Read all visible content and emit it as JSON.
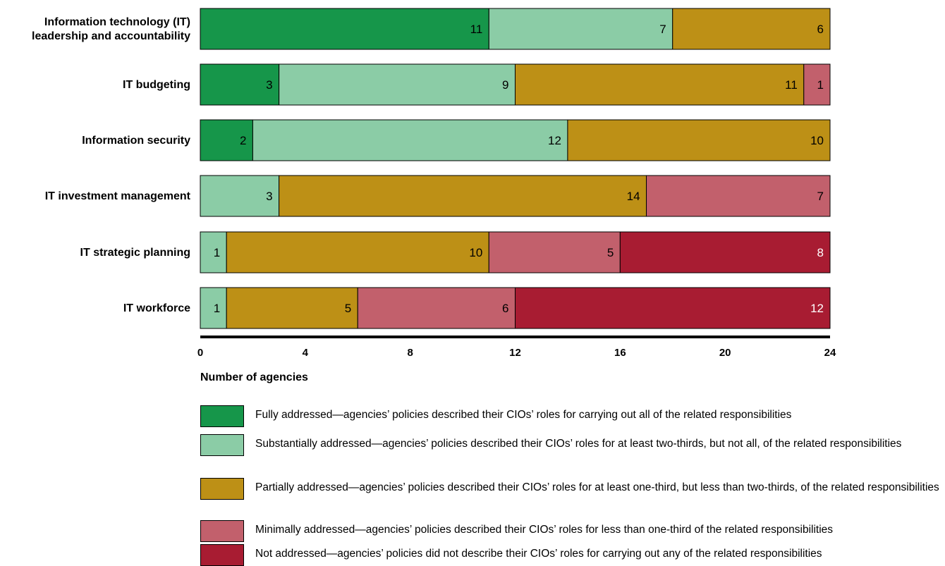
{
  "chart_data": {
    "type": "bar",
    "orientation": "horizontal",
    "stacked": true,
    "categories": [
      [
        "Information technology (IT)",
        "leadership and accountability"
      ],
      [
        "IT budgeting"
      ],
      [
        "Information security"
      ],
      [
        "IT investment management"
      ],
      [
        "IT strategic planning"
      ],
      [
        "IT workforce"
      ]
    ],
    "series": [
      {
        "name": "Fully addressed",
        "color": "#16964a",
        "text_color": "#000000",
        "values": [
          11,
          3,
          2,
          0,
          0,
          0
        ]
      },
      {
        "name": "Substantially addressed",
        "color": "#8bcca6",
        "text_color": "#000000",
        "values": [
          7,
          9,
          12,
          3,
          1,
          1
        ]
      },
      {
        "name": "Partially addressed",
        "color": "#bd9016",
        "text_color": "#000000",
        "values": [
          6,
          11,
          10,
          14,
          10,
          5
        ]
      },
      {
        "name": "Minimally addressed",
        "color": "#c2606c",
        "text_color": "#000000",
        "values": [
          0,
          1,
          0,
          7,
          5,
          6
        ]
      },
      {
        "name": "Not addressed",
        "color": "#a81c32",
        "text_color": "#ffffff",
        "values": [
          0,
          0,
          0,
          0,
          8,
          12
        ]
      }
    ],
    "xlim": [
      0,
      24
    ],
    "xticks": [
      "0",
      "4",
      "8",
      "12",
      "16",
      "20",
      "24"
    ],
    "xlabel": "Number of agencies",
    "grid": false,
    "legend_position": "bottom"
  },
  "legend": [
    {
      "color": "#16964a",
      "text": "Fully addressed—agencies’ policies described their CIOs’ roles for carrying out all of the related responsibilities"
    },
    {
      "color": "#8bcca6",
      "text": "Substantially addressed—agencies’ policies described their CIOs’ roles for at least two-thirds, but not all, of the related responsibilities"
    },
    {
      "color": "#bd9016",
      "text": "Partially addressed—agencies’ policies described their CIOs’ roles for at least one-third, but less than two-thirds, of the related responsibilities"
    },
    {
      "color": "#c2606c",
      "text": "Minimally addressed—agencies’ policies described their CIOs’ roles for less than one-third of the related responsibilities"
    },
    {
      "color": "#a81c32",
      "text": "Not addressed—agencies’ policies did not describe their CIOs’ roles for carrying out any of the related responsibilities"
    }
  ]
}
